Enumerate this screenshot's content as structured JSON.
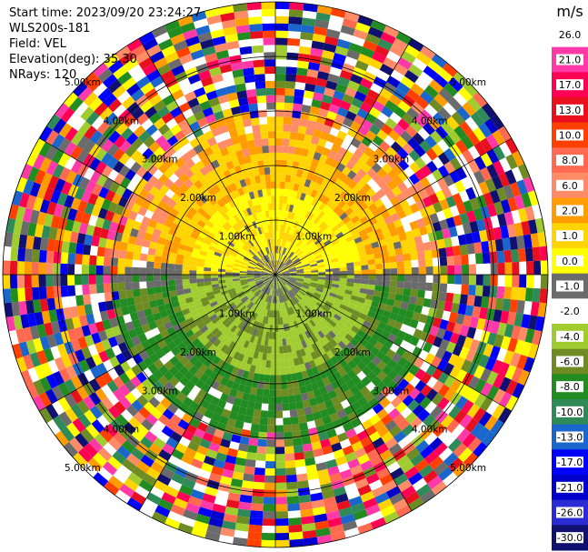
{
  "header": {
    "start_time": "Start time: 2023/09/20 23:24:27",
    "instrument": "WLS200s-181",
    "field": "Field: VEL",
    "elevation": "Elevation(deg): 35.30",
    "nrays": "NRays: 120"
  },
  "chart_data": {
    "type": "heatmap",
    "projection": "polar-ppi",
    "field": "VEL",
    "n_rays": 120,
    "max_range_km": 5.0,
    "range_rings_km": [
      1.0,
      2.0,
      3.0,
      4.0,
      5.0
    ],
    "ring_labels": [
      "1.00km",
      "2.00km",
      "3.00km",
      "4.00km",
      "5.00km"
    ],
    "colorbar": {
      "unit": "m/s",
      "levels": [
        "26.0",
        "21.0",
        "17.0",
        "13.0",
        "10.0",
        "8.0",
        "6.0",
        "2.0",
        "1.0",
        "0.0",
        "-1.0",
        "-2.0",
        "-4.0",
        "-6.0",
        "-8.0",
        "-10.0",
        "-13.0",
        "-17.0",
        "-21.0",
        "-26.0",
        "-30.0"
      ],
      "colors": [
        "#ffffff",
        "#ff3aa8",
        "#ff0055",
        "#e8101e",
        "#ff4000",
        "#ff6a50",
        "#ff8c66",
        "#ff9d00",
        "#ffd400",
        "#ffff00",
        "#6b6b6b",
        "#ffffff",
        "#a0cc30",
        "#6e8c23",
        "#228c22",
        "#2e8b57",
        "#1a66cc",
        "#0000ff",
        "#0000cc",
        "#2b2bd4",
        "#101070"
      ]
    },
    "description_bands_km": [
      {
        "from": 0.0,
        "to": 2.9,
        "north_half": "mostly 2.0 to 8.0",
        "south_half": "mostly -2.0 to -8.0",
        "near_center": "-1.0 to 1.0"
      },
      {
        "from": 2.9,
        "to": 5.0,
        "all": "noise, full color range"
      }
    ]
  }
}
